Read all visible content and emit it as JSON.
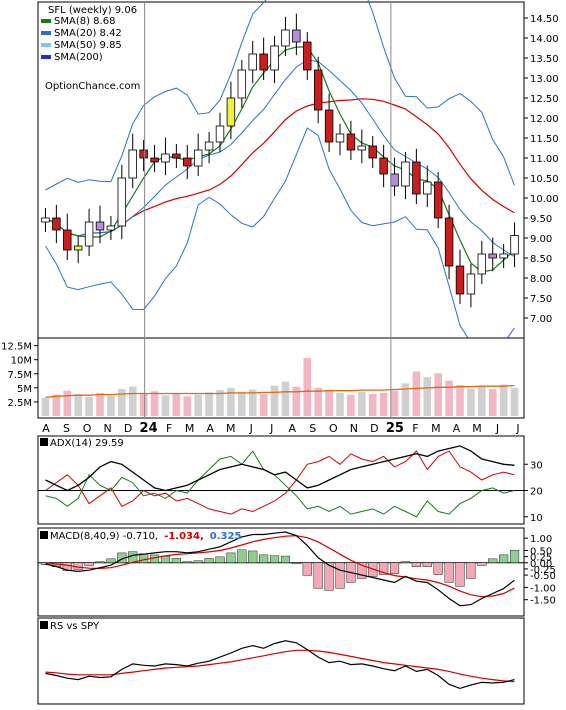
{
  "chart_data": [
    {
      "type": "candlestick",
      "title": "SFL (weekly) 9.06",
      "watermark": "OptionChance.com",
      "legend": [
        {
          "label": "SMA(8) 8.68",
          "color": "#1a7a1a"
        },
        {
          "label": "SMA(20) 8.42",
          "color": "#2b6fd6"
        },
        {
          "label": "SMA(50) 9.85",
          "color": "#86c5ea"
        },
        {
          "label": "SMA(200)",
          "color": "#1f2bd6"
        }
      ],
      "legend_position": "top-left",
      "y_ticks": [
        "14.50",
        "14.00",
        "13.50",
        "13.00",
        "12.50",
        "12.00",
        "11.50",
        "11.00",
        "10.50",
        "10.00",
        "9.50",
        "9.00",
        "8.50",
        "8.00",
        "7.50",
        "7.00"
      ],
      "ylim": [
        6.6,
        14.8
      ],
      "x_ticks": [
        "A",
        "S",
        "O",
        "N",
        "D",
        "24",
        "F",
        "M",
        "A",
        "M",
        "J",
        "J",
        "A",
        "S",
        "O",
        "N",
        "D",
        "25",
        "F",
        "M",
        "A",
        "M",
        "J",
        "J"
      ],
      "closes": [
        9.5,
        9.2,
        8.7,
        8.8,
        9.4,
        9.2,
        9.3,
        10.5,
        11.2,
        11.0,
        10.9,
        11.1,
        11.0,
        10.8,
        11.2,
        11.4,
        11.8,
        12.5,
        13.2,
        13.6,
        13.2,
        13.8,
        14.2,
        13.9,
        13.2,
        12.2,
        11.4,
        11.6,
        11.2,
        11.3,
        11.0,
        10.6,
        10.3,
        10.9,
        10.1,
        10.4,
        9.5,
        8.3,
        7.6,
        8.1,
        8.6,
        8.5,
        8.6,
        9.06
      ],
      "sma8_last": 8.68,
      "sma20_last": 8.42,
      "sma50_last": 9.85
    },
    {
      "type": "bar",
      "title": "",
      "y_ticks": [
        "12.5M",
        "10M",
        "7.5M",
        "5M",
        "2.5M"
      ],
      "ylim": [
        0,
        13.5
      ],
      "volume_m": [
        3.2,
        3.8,
        4.5,
        3.9,
        3.4,
        4.1,
        3.6,
        4.8,
        5.2,
        3.9,
        4.4,
        3.7,
        4.0,
        3.5,
        3.8,
        4.2,
        4.6,
        5.0,
        4.3,
        4.7,
        3.9,
        5.4,
        6.1,
        5.2,
        10.3,
        5.0,
        4.6,
        4.1,
        3.8,
        4.3,
        3.9,
        4.1,
        4.5,
        5.8,
        7.9,
        6.9,
        7.6,
        6.3,
        5.5,
        4.9,
        5.2,
        4.8,
        5.6,
        5.0
      ],
      "volume_sma": [
        3.3,
        3.5,
        3.6,
        3.7,
        3.7,
        3.8,
        3.8,
        3.9,
        4.0,
        4.0,
        4.0,
        4.0,
        4.0,
        4.0,
        4.0,
        4.0,
        4.0,
        4.1,
        4.1,
        4.1,
        4.2,
        4.2,
        4.3,
        4.3,
        4.4,
        4.4,
        4.5,
        4.5,
        4.5,
        4.6,
        4.6,
        4.6,
        4.7,
        4.8,
        4.9,
        5.0,
        5.1,
        5.1,
        5.2,
        5.2,
        5.3,
        5.3,
        5.3,
        5.4
      ]
    },
    {
      "type": "line",
      "title": "ADX(14) 29.59",
      "y_ticks": [
        "30",
        "20",
        "10"
      ],
      "ylim": [
        8,
        40
      ],
      "adx": [
        24,
        22,
        20,
        22,
        25,
        29,
        31,
        30,
        27,
        24,
        21,
        20,
        21,
        22,
        24,
        26,
        28,
        29,
        30,
        29,
        28,
        26,
        27,
        24,
        21,
        22,
        24,
        26,
        28,
        29,
        30,
        31,
        32,
        33,
        34,
        33,
        35,
        36,
        37,
        35,
        32,
        31,
        30,
        29.59
      ],
      "plus_di": [
        18,
        17,
        14,
        17,
        26,
        22,
        20,
        25,
        23,
        18,
        19,
        17,
        20,
        19,
        24,
        28,
        32,
        33,
        30,
        35,
        28,
        26,
        22,
        18,
        13,
        14,
        12,
        14,
        11,
        12,
        13,
        11,
        14,
        12,
        10,
        16,
        12,
        11,
        15,
        17,
        20,
        21,
        19,
        20
      ],
      "minus_di": [
        20,
        23,
        26,
        22,
        15,
        18,
        21,
        14,
        16,
        20,
        18,
        19,
        16,
        17,
        15,
        13,
        12,
        11,
        13,
        12,
        14,
        16,
        19,
        24,
        30,
        31,
        33,
        30,
        34,
        32,
        31,
        33,
        29,
        31,
        35,
        28,
        33,
        35,
        29,
        27,
        24,
        26,
        27,
        26
      ],
      "ref_line": 20
    },
    {
      "type": "bar",
      "title": "MACD(8,40,9) -0.710,",
      "macd_label": "-1.034,",
      "signal_label": "0.325",
      "y_ticks": [
        "1.00",
        "0.50",
        "0.25",
        "0.00",
        "-0.25",
        "-0.50",
        "-1.00",
        "-1.50"
      ],
      "ylim": [
        -2.0,
        1.25
      ],
      "macd": [
        -0.05,
        -0.15,
        -0.3,
        -0.35,
        -0.3,
        -0.2,
        -0.1,
        0.15,
        0.3,
        0.35,
        0.4,
        0.45,
        0.45,
        0.4,
        0.45,
        0.55,
        0.65,
        0.85,
        1.05,
        1.15,
        1.15,
        1.2,
        1.25,
        1.1,
        0.7,
        0.2,
        -0.1,
        -0.3,
        -0.4,
        -0.5,
        -0.6,
        -0.7,
        -0.8,
        -0.55,
        -0.75,
        -0.8,
        -1.1,
        -1.45,
        -1.75,
        -1.7,
        -1.45,
        -1.25,
        -1.05,
        -0.71
      ],
      "signal": [
        0.0,
        -0.05,
        -0.1,
        -0.18,
        -0.22,
        -0.23,
        -0.2,
        -0.1,
        0.02,
        0.12,
        0.2,
        0.28,
        0.34,
        0.37,
        0.4,
        0.44,
        0.5,
        0.6,
        0.72,
        0.85,
        0.95,
        1.02,
        1.08,
        1.1,
        1.02,
        0.85,
        0.6,
        0.35,
        0.1,
        -0.1,
        -0.25,
        -0.4,
        -0.52,
        -0.58,
        -0.65,
        -0.7,
        -0.8,
        -0.95,
        -1.15,
        -1.3,
        -1.38,
        -1.35,
        -1.25,
        -1.03
      ],
      "ref_line": 0
    },
    {
      "type": "line",
      "title": "RS vs SPY",
      "ylim": [
        0,
        10
      ],
      "rs": [
        4.2,
        3.9,
        3.5,
        3.3,
        3.8,
        3.6,
        3.7,
        4.8,
        5.6,
        5.4,
        5.3,
        5.6,
        5.5,
        5.3,
        5.7,
        6.0,
        6.6,
        7.2,
        7.9,
        8.3,
        7.9,
        8.6,
        9.0,
        8.7,
        7.7,
        6.6,
        5.8,
        6.0,
        5.5,
        5.6,
        5.3,
        4.9,
        4.6,
        5.3,
        4.5,
        4.8,
        3.9,
        2.6,
        2.0,
        2.5,
        2.9,
        2.8,
        2.9,
        3.3
      ],
      "rs_sma": [
        4.4,
        4.3,
        4.1,
        4.0,
        4.0,
        4.0,
        4.0,
        4.2,
        4.4,
        4.6,
        4.8,
        5.0,
        5.1,
        5.2,
        5.3,
        5.5,
        5.7,
        5.9,
        6.2,
        6.5,
        6.8,
        7.1,
        7.4,
        7.6,
        7.6,
        7.5,
        7.3,
        7.0,
        6.7,
        6.4,
        6.1,
        5.8,
        5.6,
        5.4,
        5.2,
        5.0,
        4.8,
        4.5,
        4.1,
        3.8,
        3.5,
        3.3,
        3.1,
        3.0
      ]
    }
  ]
}
